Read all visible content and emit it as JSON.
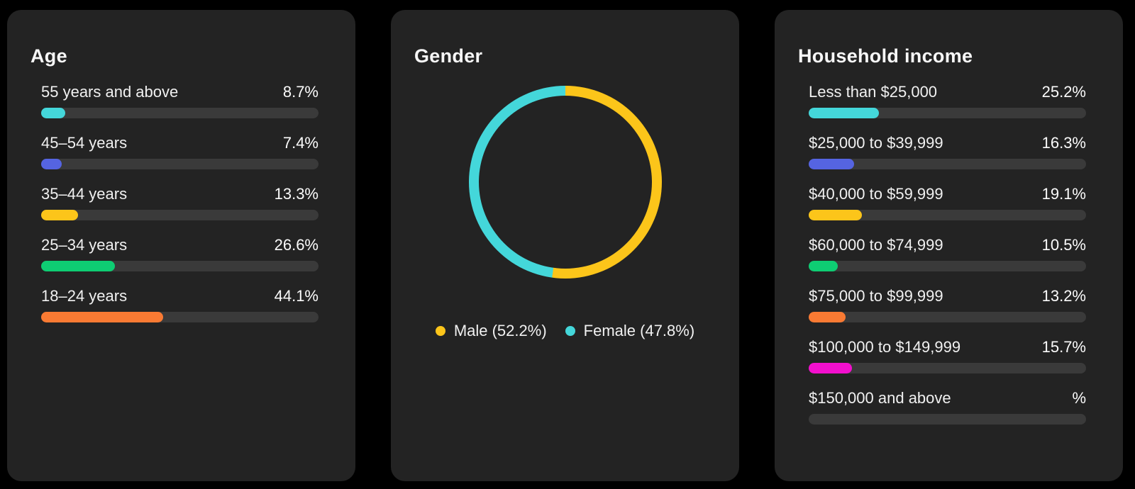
{
  "page": {
    "background": "#000000",
    "card_background": "#232323",
    "track_color": "#3a3a3a",
    "text_color": "#f1f1f1"
  },
  "cards": [
    {
      "title": "Age",
      "rows": [
        {
          "label": "55 years and above",
          "value": "8.7%",
          "pct": 8.7,
          "color": "#44d7da"
        },
        {
          "label": "45–54 years",
          "value": "7.4%",
          "pct": 7.4,
          "color": "#5564e1"
        },
        {
          "label": "35–44 years",
          "value": "13.3%",
          "pct": 13.3,
          "color": "#fcc51a"
        },
        {
          "label": "25–34 years",
          "value": "26.6%",
          "pct": 26.6,
          "color": "#0ecd73"
        },
        {
          "label": "18–24 years",
          "value": "44.1%",
          "pct": 44.1,
          "color": "#f97a33"
        }
      ]
    },
    {
      "title": "Gender",
      "segments": [
        {
          "label": "Male",
          "pct": 52.2,
          "color": "#fcc51a",
          "legend_label": "Male (52.2%)"
        },
        {
          "label": "Female",
          "pct": 47.8,
          "color": "#44d7da",
          "legend_label": "Female (47.8%)"
        }
      ]
    },
    {
      "title": "Household income",
      "rows": [
        {
          "label": "Less than $25,000",
          "value": "25.2%",
          "pct": 25.2,
          "color": "#44d7da"
        },
        {
          "label": "$25,000 to $39,999",
          "value": "16.3%",
          "pct": 16.3,
          "color": "#5564e1"
        },
        {
          "label": "$40,000 to $59,999",
          "value": "19.1%",
          "pct": 19.1,
          "color": "#fcc51a"
        },
        {
          "label": "$60,000 to $74,999",
          "value": "10.5%",
          "pct": 10.5,
          "color": "#0ecd73"
        },
        {
          "label": "$75,000 to $99,999",
          "value": "13.2%",
          "pct": 13.2,
          "color": "#f97a33"
        },
        {
          "label": "$100,000 to $149,999",
          "value": "15.7%",
          "pct": 15.7,
          "color": "#f20fcd"
        },
        {
          "label": "$150,000 and above",
          "value": "%",
          "pct": 0,
          "color": null
        }
      ]
    }
  ],
  "chart_data": [
    {
      "type": "bar",
      "title": "Age",
      "orientation": "horizontal",
      "categories": [
        "55 years and above",
        "45–54 years",
        "35–44 years",
        "25–34 years",
        "18–24 years"
      ],
      "values": [
        8.7,
        7.4,
        13.3,
        26.6,
        44.1
      ],
      "unit": "%",
      "xlim": [
        0,
        100
      ],
      "bar_colors": [
        "#44d7da",
        "#5564e1",
        "#fcc51a",
        "#0ecd73",
        "#f97a33"
      ],
      "grid": false
    },
    {
      "type": "pie",
      "subtype": "donut",
      "title": "Gender",
      "labels": [
        "Male",
        "Female"
      ],
      "values": [
        52.2,
        47.8
      ],
      "unit": "%",
      "colors": [
        "#fcc51a",
        "#44d7da"
      ],
      "legend_position": "bottom",
      "start_angle_deg": 0,
      "direction": "clockwise"
    },
    {
      "type": "bar",
      "title": "Household income",
      "orientation": "horizontal",
      "categories": [
        "Less than $25,000",
        "$25,000 to $39,999",
        "$40,000 to $59,999",
        "$60,000 to $74,999",
        "$75,000 to $99,999",
        "$100,000 to $149,999",
        "$150,000 and above"
      ],
      "values": [
        25.2,
        16.3,
        19.1,
        10.5,
        13.2,
        15.7,
        null
      ],
      "unit": "%",
      "xlim": [
        0,
        100
      ],
      "bar_colors": [
        "#44d7da",
        "#5564e1",
        "#fcc51a",
        "#0ecd73",
        "#f97a33",
        "#f20fcd",
        null
      ],
      "grid": false
    }
  ]
}
